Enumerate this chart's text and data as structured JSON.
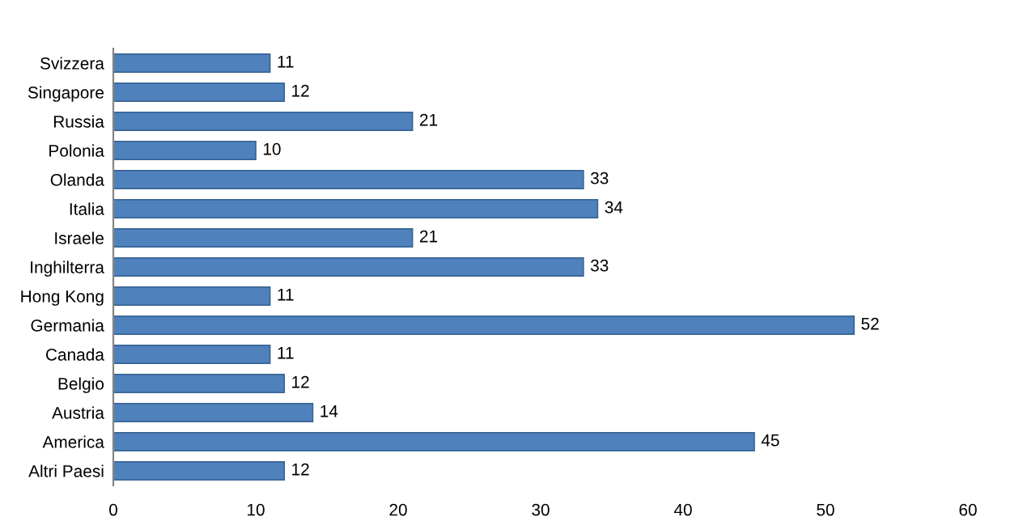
{
  "chart_data": {
    "type": "bar",
    "orientation": "horizontal",
    "categories": [
      "Svizzera",
      "Singapore",
      "Russia",
      "Polonia",
      "Olanda",
      "Italia",
      "Israele",
      "Inghilterra",
      "Hong Kong",
      "Germania",
      "Canada",
      "Belgio",
      "Austria",
      "America",
      "Altri Paesi"
    ],
    "values": [
      11,
      12,
      21,
      10,
      33,
      34,
      21,
      33,
      11,
      52,
      11,
      12,
      14,
      45,
      12
    ],
    "color": "#4f81bd",
    "xlim": [
      0,
      60
    ],
    "xticks": [
      0,
      10,
      20,
      30,
      40,
      50,
      60
    ],
    "grid": false,
    "data_labels": true
  }
}
